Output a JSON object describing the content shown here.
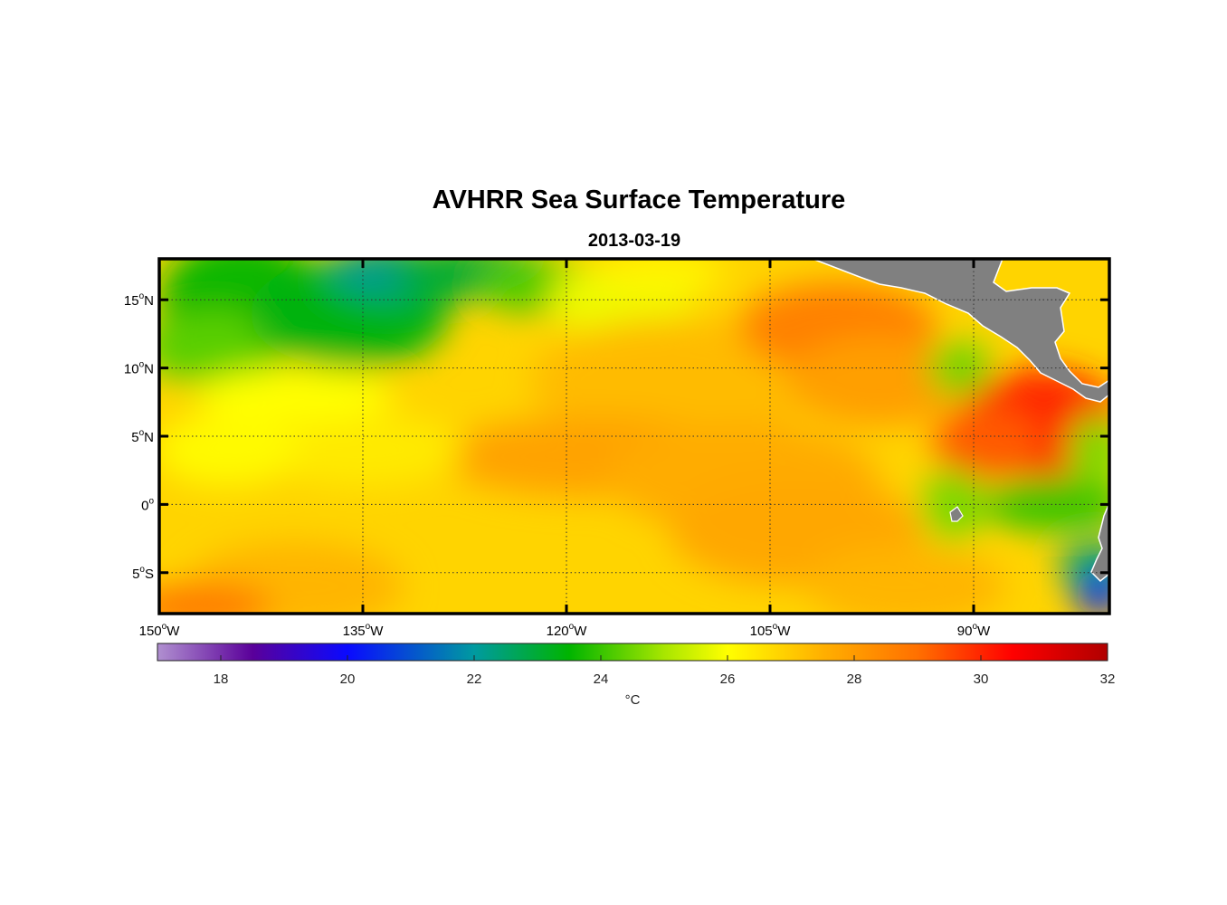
{
  "chart_data": {
    "type": "heatmap",
    "title": "AVHRR Sea Surface Temperature",
    "subtitle": "2013-03-19",
    "projection": "equirectangular",
    "lon_range": [
      -150,
      -80
    ],
    "lat_range": [
      -8,
      18
    ],
    "x_ticks": [
      {
        "value": -150,
        "num": "150",
        "hemi": "W"
      },
      {
        "value": -135,
        "num": "135",
        "hemi": "W"
      },
      {
        "value": -120,
        "num": "120",
        "hemi": "W"
      },
      {
        "value": -105,
        "num": "105",
        "hemi": "W"
      },
      {
        "value": -90,
        "num": "90",
        "hemi": "W"
      }
    ],
    "y_ticks": [
      {
        "value": 15,
        "num": "15",
        "hemi": "N"
      },
      {
        "value": 10,
        "num": "10",
        "hemi": "N"
      },
      {
        "value": 5,
        "num": "5",
        "hemi": "N"
      },
      {
        "value": 0,
        "num": "0",
        "hemi": ""
      },
      {
        "value": -5,
        "num": "5",
        "hemi": "S"
      }
    ],
    "degree_symbol": "o",
    "grid": true,
    "colorbar": {
      "min": 17,
      "max": 32,
      "ticks": [
        18,
        20,
        22,
        24,
        26,
        28,
        30,
        32
      ],
      "label": "°C",
      "colormap": "purple-blue-green-yellow-orange-red",
      "stops": [
        {
          "value": 17,
          "color": "#b090d0"
        },
        {
          "value": 18.5,
          "color": "#5a009a"
        },
        {
          "value": 20,
          "color": "#0a0aff"
        },
        {
          "value": 22,
          "color": "#009aa0"
        },
        {
          "value": 23.5,
          "color": "#00b400"
        },
        {
          "value": 25,
          "color": "#a8e600"
        },
        {
          "value": 26,
          "color": "#ffff00"
        },
        {
          "value": 27.5,
          "color": "#ffb000"
        },
        {
          "value": 29,
          "color": "#ff7000"
        },
        {
          "value": 30.5,
          "color": "#ff0000"
        },
        {
          "value": 32,
          "color": "#b00000"
        }
      ]
    },
    "land_color": "#808080",
    "sst_features": [
      {
        "name": "cool-north-band",
        "lon": -140,
        "lat": 14,
        "temp": 23.8
      },
      {
        "name": "coolest-northwest",
        "lon": -134,
        "lat": 16.5,
        "temp": 22.3
      },
      {
        "name": "warm-central-band",
        "lon": -118,
        "lat": 4,
        "temp": 27.8
      },
      {
        "name": "warm-pool-gulf-panama",
        "lon": -85,
        "lat": 6,
        "temp": 29.8
      },
      {
        "name": "warm-north-mexico-coast",
        "lon": -100,
        "lat": 13,
        "temp": 28.5
      },
      {
        "name": "galapagos-cold-tongue",
        "lon": -84,
        "lat": 0,
        "temp": 24.0
      },
      {
        "name": "peru-upwelling",
        "lon": -80.5,
        "lat": -6,
        "temp": 20.5
      },
      {
        "name": "southwest-warm-corner",
        "lon": -147,
        "lat": -7.5,
        "temp": 28.8
      }
    ]
  }
}
